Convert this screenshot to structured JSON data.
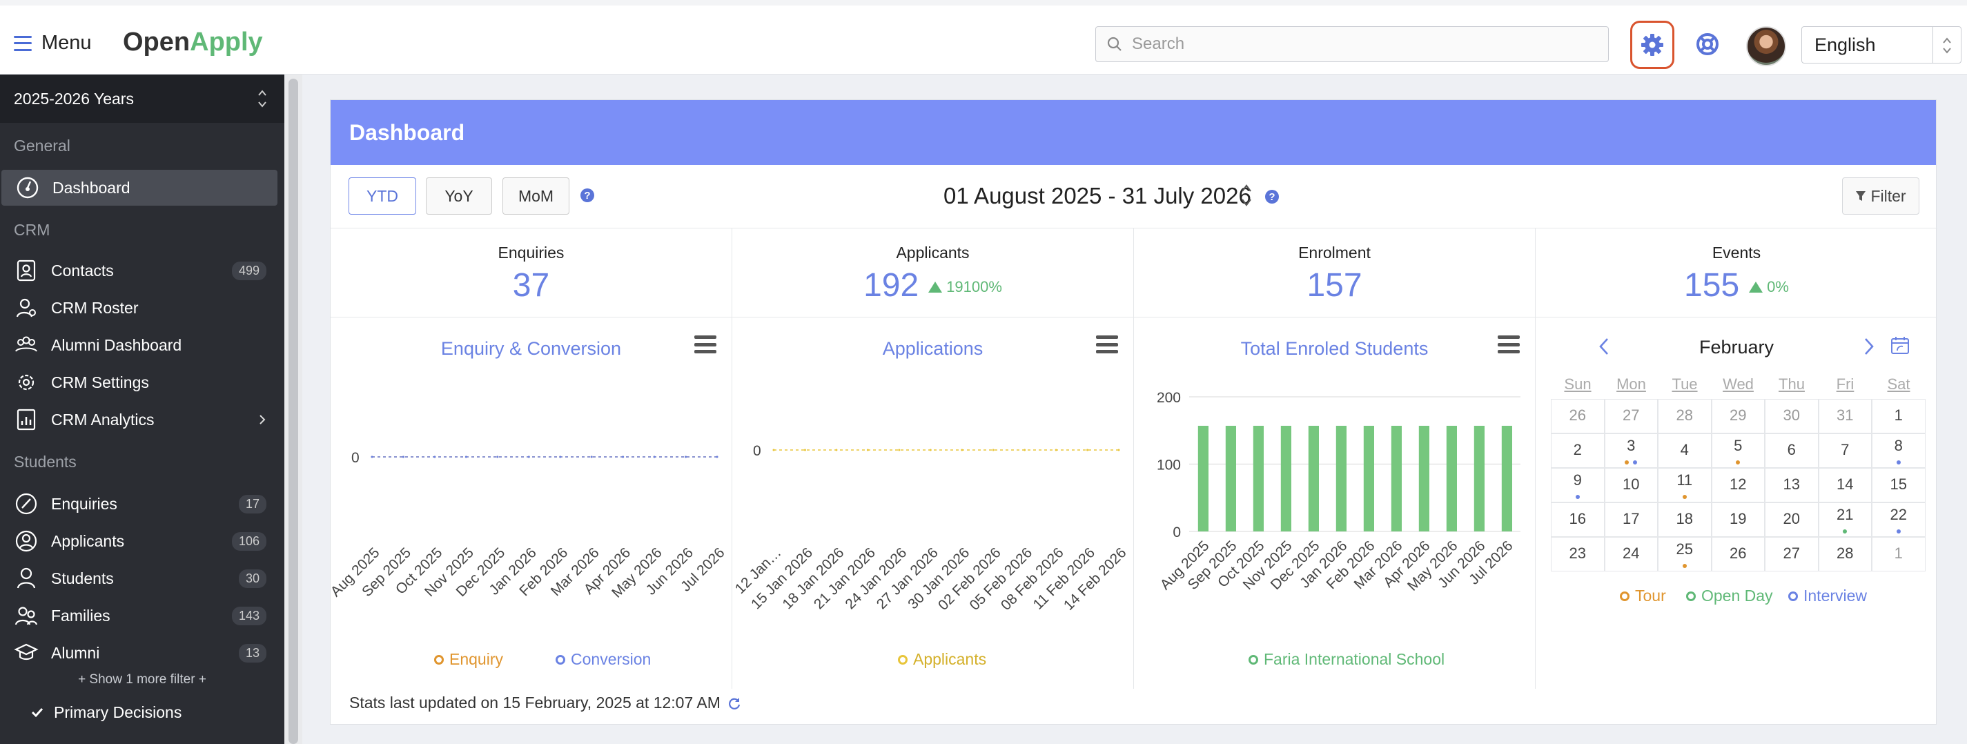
{
  "topbar": {
    "menu_label": "Menu",
    "logo_a": "Open",
    "logo_b": "Apply",
    "search_placeholder": "Search",
    "language": "English"
  },
  "sidebar": {
    "year": "2025-2026 Years",
    "sections": {
      "general": "General",
      "crm": "CRM",
      "students": "Students"
    },
    "items": [
      {
        "label": "Dashboard",
        "icon": "dashboard-icon"
      },
      {
        "label": "Contacts",
        "badge": "499",
        "icon": "contacts-icon"
      },
      {
        "label": "CRM Roster",
        "icon": "roster-icon"
      },
      {
        "label": "Alumni Dashboard",
        "icon": "alumni-dashboard-icon"
      },
      {
        "label": "CRM Settings",
        "icon": "settings-icon"
      },
      {
        "label": "CRM Analytics",
        "icon": "analytics-icon"
      },
      {
        "label": "Enquiries",
        "badge": "17",
        "icon": "enquiries-icon"
      },
      {
        "label": "Applicants",
        "badge": "106",
        "icon": "applicants-icon"
      },
      {
        "label": "Students",
        "badge": "30",
        "icon": "students-icon"
      },
      {
        "label": "Families",
        "badge": "143",
        "icon": "families-icon"
      },
      {
        "label": "Alumni",
        "badge": "13",
        "icon": "alumni-icon"
      }
    ],
    "show_more": "+ Show 1 more filter +",
    "primary_decisions": "Primary Decisions"
  },
  "dashboard": {
    "title": "Dashboard",
    "buttons": [
      "YTD",
      "YoY",
      "MoM"
    ],
    "date_range": "01 August 2025 - 31 July 2026",
    "filter_label": "Filter",
    "stats": [
      {
        "label": "Enquiries",
        "value": "37",
        "change": ""
      },
      {
        "label": "Applicants",
        "value": "192",
        "change": "19100%"
      },
      {
        "label": "Enrolment",
        "value": "157",
        "change": ""
      },
      {
        "label": "Events",
        "value": "155",
        "change": "0%"
      }
    ],
    "footnote": "Stats last updated on 15 February, 2025 at 12:07 AM"
  },
  "chart_data": [
    {
      "type": "line",
      "title": "Enquiry & Conversion",
      "x": [
        "Aug 2025",
        "Sep 2025",
        "Oct 2025",
        "Nov 2025",
        "Dec 2025",
        "Jan 2026",
        "Feb 2026",
        "Mar 2026",
        "Apr 2026",
        "May 2026",
        "Jun 2026",
        "Jul 2026"
      ],
      "y_ticks": [
        "0"
      ],
      "series": [
        {
          "name": "Enquiry",
          "values": [
            0,
            0,
            0,
            0,
            0,
            0,
            0,
            0,
            0,
            0,
            0,
            0
          ],
          "color": "#e0952e"
        },
        {
          "name": "Conversion",
          "values": [
            0,
            0,
            0,
            0,
            0,
            0,
            0,
            0,
            0,
            0,
            0,
            0
          ],
          "color": "#6a82e3"
        }
      ]
    },
    {
      "type": "line",
      "title": "Applications",
      "x": [
        "12 Jan…",
        "15 Jan 2026",
        "18 Jan 2026",
        "21 Jan 2026",
        "24 Jan 2026",
        "27 Jan 2026",
        "30 Jan 2026",
        "02 Feb 2026",
        "05 Feb 2026",
        "08 Feb 2026",
        "11 Feb 2026",
        "14 Feb 2026"
      ],
      "y_ticks": [
        "0"
      ],
      "series": [
        {
          "name": "Applicants",
          "values": [
            0,
            0,
            0,
            0,
            0,
            0,
            0,
            0,
            0,
            0,
            0,
            0
          ],
          "color": "#e8c53a"
        }
      ]
    },
    {
      "type": "bar",
      "title": "Total Enroled Students",
      "categories": [
        "Aug 2025",
        "Sep 2025",
        "Oct 2025",
        "Nov 2025",
        "Dec 2025",
        "Jan 2026",
        "Feb 2026",
        "Mar 2026",
        "Apr 2026",
        "May 2026",
        "Jun 2026",
        "Jul 2026"
      ],
      "y_ticks": [
        "0",
        "100",
        "200"
      ],
      "ylim": [
        0,
        200
      ],
      "series": [
        {
          "name": "Faria International School",
          "values": [
            157,
            157,
            157,
            157,
            157,
            157,
            157,
            157,
            157,
            157,
            157,
            157
          ],
          "color": "#76c77e"
        }
      ]
    }
  ],
  "calendar": {
    "month": "February",
    "days": [
      "Sun",
      "Mon",
      "Tue",
      "Wed",
      "Thu",
      "Fri",
      "Sat"
    ],
    "weeks": [
      [
        {
          "d": "26",
          "o": true
        },
        {
          "d": "27",
          "o": true
        },
        {
          "d": "28",
          "o": true
        },
        {
          "d": "29",
          "o": true
        },
        {
          "d": "30",
          "o": true
        },
        {
          "d": "31",
          "o": true
        },
        {
          "d": "1"
        }
      ],
      [
        {
          "d": "2"
        },
        {
          "d": "3",
          "dots": [
            "#e0952e",
            "#6a82e3"
          ]
        },
        {
          "d": "4"
        },
        {
          "d": "5",
          "dots": [
            "#e0952e"
          ]
        },
        {
          "d": "6"
        },
        {
          "d": "7"
        },
        {
          "d": "8",
          "dots": [
            "#6a82e3"
          ]
        }
      ],
      [
        {
          "d": "9",
          "dots": [
            "#6a82e3"
          ]
        },
        {
          "d": "10"
        },
        {
          "d": "11",
          "dots": [
            "#e0952e"
          ]
        },
        {
          "d": "12"
        },
        {
          "d": "13"
        },
        {
          "d": "14"
        },
        {
          "d": "15"
        }
      ],
      [
        {
          "d": "16"
        },
        {
          "d": "17"
        },
        {
          "d": "18"
        },
        {
          "d": "19"
        },
        {
          "d": "20"
        },
        {
          "d": "21",
          "dots": [
            "#5fb876"
          ]
        },
        {
          "d": "22",
          "dots": [
            "#6a82e3"
          ]
        }
      ],
      [
        {
          "d": "23"
        },
        {
          "d": "24"
        },
        {
          "d": "25",
          "dots": [
            "#e0952e"
          ]
        },
        {
          "d": "26"
        },
        {
          "d": "27"
        },
        {
          "d": "28"
        },
        {
          "d": "1",
          "o": true
        }
      ]
    ],
    "legend": [
      {
        "label": "Tour",
        "color": "#e0952e"
      },
      {
        "label": "Open Day",
        "color": "#5fb876"
      },
      {
        "label": "Interview",
        "color": "#6a82e3"
      }
    ]
  }
}
